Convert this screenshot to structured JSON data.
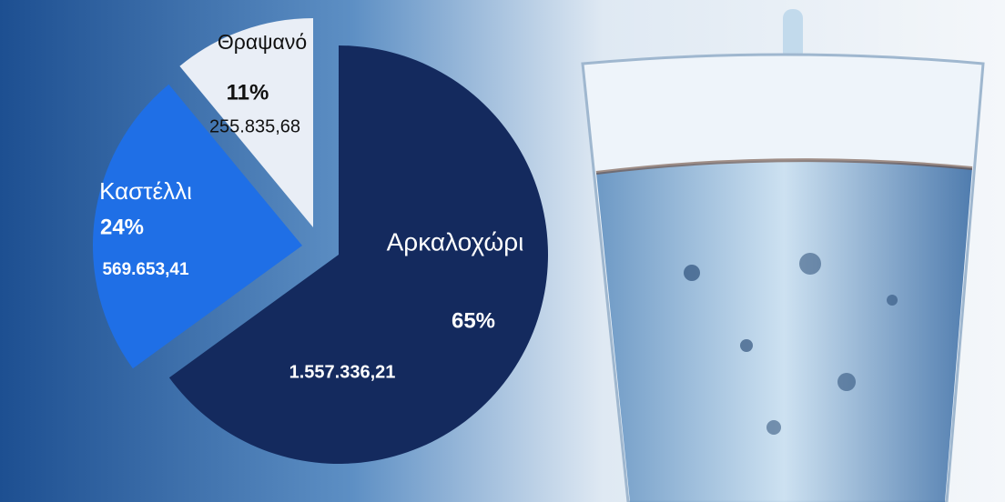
{
  "chart_data": {
    "type": "pie",
    "categories": [
      "Αρκαλοχώρι",
      "Καστέλλι",
      "Θραψανό"
    ],
    "values": [
      65,
      24,
      11
    ],
    "value_labels": [
      "65%",
      "24%",
      "11%"
    ],
    "amounts": [
      1557336.21,
      569653.41,
      255835.68
    ],
    "amount_labels": [
      "1.557.336,21",
      "569.653,41",
      "255.835,68"
    ],
    "colors": [
      "#142a5e",
      "#1f6fe6",
      "#e9eef6"
    ]
  }
}
